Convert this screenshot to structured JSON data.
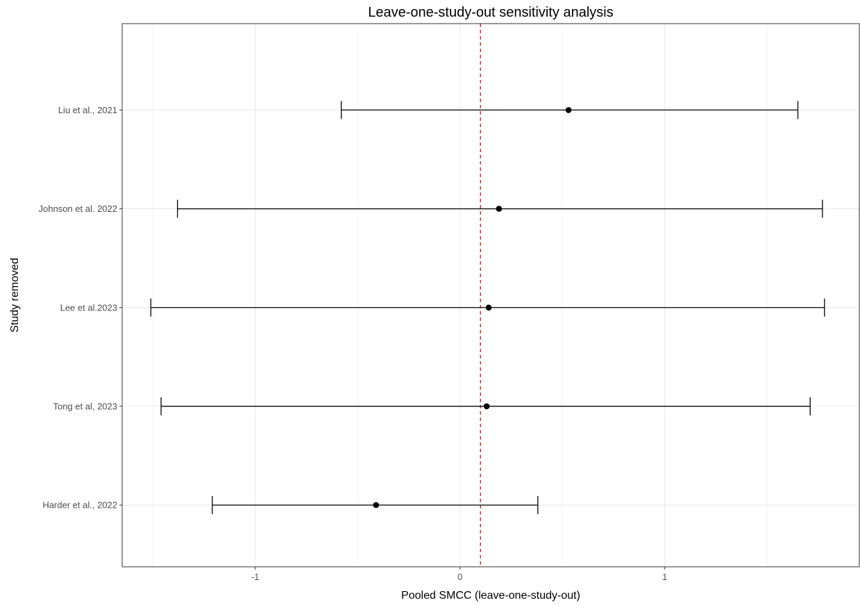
{
  "chart_data": {
    "type": "forest",
    "title": "Leave-one-study-out sensitivity analysis",
    "xlabel": "Pooled SMCC (leave-one-study-out)",
    "ylabel": "Study removed",
    "xlim": [
      -1.65,
      1.95
    ],
    "x_ticks": [
      -1,
      0,
      1
    ],
    "x_tick_labels": [
      "-1",
      "0",
      "1"
    ],
    "reference_line": 0.1,
    "reference_line_color": "#cc3333",
    "grid": true,
    "legend": "none",
    "studies": [
      {
        "label": "Liu et al., 2021",
        "estimate": 0.53,
        "lower": -0.58,
        "upper": 1.65
      },
      {
        "label": "Johnson et al. 2022",
        "estimate": 0.19,
        "lower": -1.38,
        "upper": 1.77
      },
      {
        "label": "Lee et al.2023",
        "estimate": 0.14,
        "lower": -1.51,
        "upper": 1.78
      },
      {
        "label": "Tong et al, 2023",
        "estimate": 0.13,
        "lower": -1.46,
        "upper": 1.71
      },
      {
        "label": "Harder et al., 2022",
        "estimate": -0.41,
        "lower": -1.21,
        "upper": 0.38
      }
    ]
  }
}
